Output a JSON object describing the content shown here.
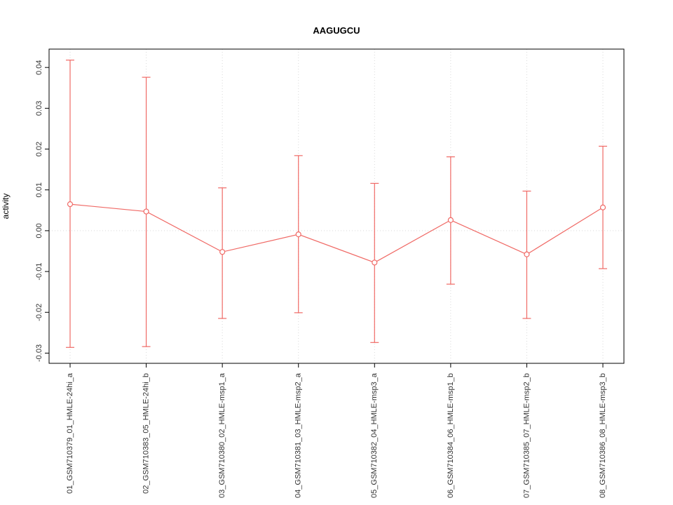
{
  "chart_data": {
    "type": "line",
    "title": "AAGUGCU",
    "ylabel": "activity",
    "xlabel": "",
    "categories": [
      "01_GSM710379_01_HMLE-24hi_a",
      "02_GSM710383_05_HMLE-24hi_b",
      "03_GSM710380_02_HMLE-msp1_a",
      "04_GSM710381_03_HMLE-msp2_a",
      "05_GSM710382_04_HMLE-msp3_a",
      "06_GSM710384_06_HMLE-msp1_b",
      "07_GSM710385_07_HMLE-msp2_b",
      "08_GSM710386_08_HMLE-msp3_b"
    ],
    "series": [
      {
        "name": "mean",
        "values": [
          0.0065,
          0.0047,
          -0.0052,
          -0.0009,
          -0.0078,
          0.0026,
          -0.0058,
          0.0057
        ]
      },
      {
        "name": "upper",
        "values": [
          0.0418,
          0.0376,
          0.0105,
          0.0184,
          0.0116,
          0.0181,
          0.0097,
          0.0207
        ]
      },
      {
        "name": "lower",
        "values": [
          -0.0286,
          -0.0284,
          -0.0215,
          -0.0201,
          -0.0274,
          -0.0131,
          -0.0215,
          -0.0093
        ]
      }
    ],
    "yticks": [
      -0.03,
      -0.02,
      -0.01,
      0.0,
      0.01,
      0.02,
      0.03,
      0.04
    ],
    "ylim": [
      -0.0325,
      0.0445
    ],
    "grid": true,
    "zero_line": 0,
    "legend_position": "none",
    "colors": {
      "line": "#f06a66",
      "grid": "#d9d9d9",
      "axis": "#000000",
      "tick_text": "#333333"
    }
  }
}
